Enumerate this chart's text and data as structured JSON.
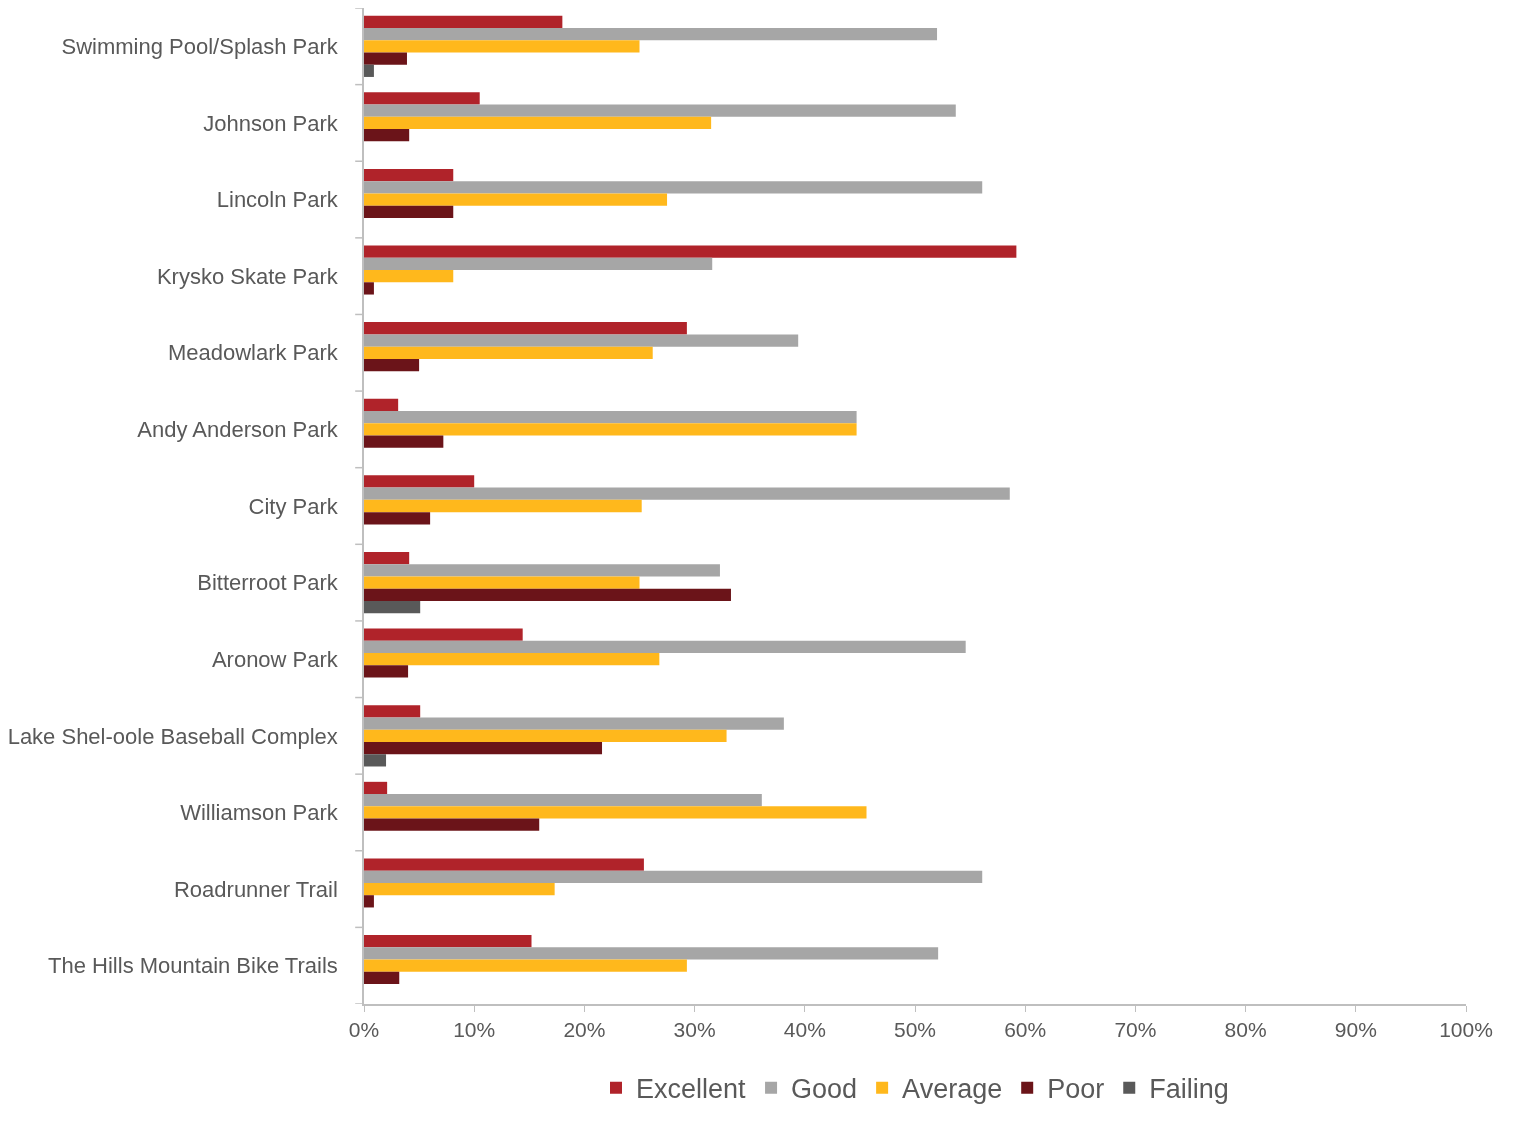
{
  "chart_data": {
    "type": "bar",
    "orientation": "horizontal",
    "categories": [
      "Swimming Pool/Splash Park",
      "Johnson Park",
      "Lincoln Park",
      "Krysko Skate Park",
      "Meadowlark Park",
      "Andy Anderson Park",
      "City Park",
      "Bitterroot Park",
      "Aronow Park",
      "Lake Shel-oole Baseball Complex",
      "Williamson Park",
      "Roadrunner Trail",
      "The Hills Mountain Bike Trails"
    ],
    "series": [
      {
        "name": "Excellent",
        "color": "#b0232a",
        "values": [
          18.0,
          10.5,
          8.1,
          59.2,
          29.3,
          3.1,
          10.0,
          4.1,
          14.4,
          5.1,
          2.1,
          25.4,
          15.2
        ]
      },
      {
        "name": "Good",
        "color": "#a6a6a6",
        "values": [
          52.0,
          53.7,
          56.1,
          31.6,
          39.4,
          44.7,
          58.6,
          32.3,
          54.6,
          38.1,
          36.1,
          56.1,
          52.1
        ]
      },
      {
        "name": "Average",
        "color": "#ffb81c",
        "values": [
          25.0,
          31.5,
          27.5,
          8.1,
          26.2,
          44.7,
          25.2,
          25.0,
          26.8,
          32.9,
          45.6,
          17.3,
          29.3
        ]
      },
      {
        "name": "Poor",
        "color": "#6b1419",
        "values": [
          3.9,
          4.1,
          8.1,
          0.9,
          5.0,
          7.2,
          6.0,
          33.3,
          4.0,
          21.6,
          15.9,
          0.9,
          3.2
        ]
      },
      {
        "name": "Failing",
        "color": "#595959",
        "values": [
          0.9,
          null,
          null,
          null,
          null,
          null,
          null,
          5.1,
          null,
          2.0,
          null,
          null,
          null
        ]
      }
    ],
    "xlim": [
      0,
      100
    ],
    "xticks": [
      {
        "value": 0,
        "label": "0%"
      },
      {
        "value": 10,
        "label": "10%"
      },
      {
        "value": 20,
        "label": "20%"
      },
      {
        "value": 30,
        "label": "30%"
      },
      {
        "value": 40,
        "label": "40%"
      },
      {
        "value": 50,
        "label": "50%"
      },
      {
        "value": 60,
        "label": "60%"
      },
      {
        "value": 70,
        "label": "70%"
      },
      {
        "value": 80,
        "label": "80%"
      },
      {
        "value": 90,
        "label": "90%"
      },
      {
        "value": 100,
        "label": "100%"
      }
    ],
    "legend": "bottom"
  }
}
